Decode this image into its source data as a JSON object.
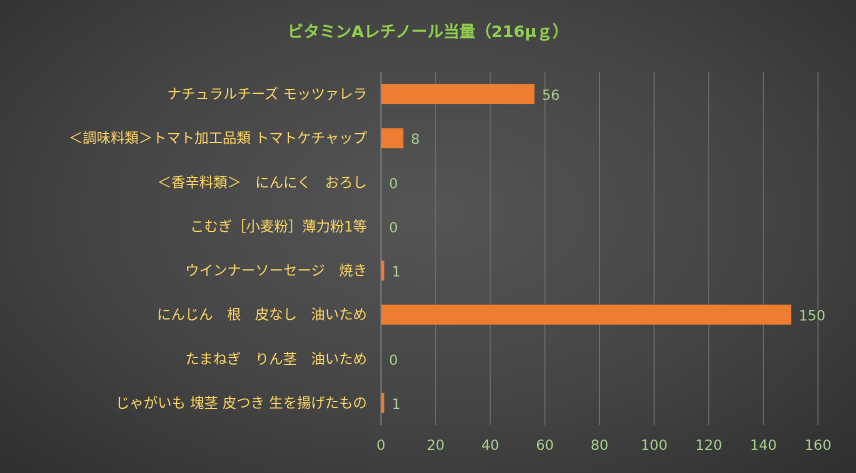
{
  "chart_data": {
    "type": "bar",
    "orientation": "horizontal",
    "title": "ビタミンAレチノール当量（216μｇ）",
    "categories": [
      "ナチュラルチーズ モッツァレラ",
      "＜調味料類＞トマト加工品類 トマトケチャップ",
      "＜香辛料類＞　にんにく　おろし",
      "こむぎ［小麦粉］薄力粉1等",
      "ウインナーソーセージ　焼き",
      "にんじん　根　皮なし　油いため",
      "たまねぎ　りん茎　油いため",
      "じゃがいも 塊茎 皮つき 生を揚げたもの"
    ],
    "values": [
      56,
      8,
      0,
      0,
      1,
      150,
      0,
      1
    ],
    "value_labels": [
      "56",
      "8",
      "0",
      "0",
      "1",
      "150",
      "0",
      "1"
    ],
    "xlim": [
      0,
      160
    ],
    "xticks": [
      0,
      20,
      40,
      60,
      80,
      100,
      120,
      140,
      160
    ],
    "xtick_labels": [
      "0",
      "20",
      "40",
      "60",
      "80",
      "100",
      "120",
      "140",
      "160"
    ],
    "grid": true,
    "colors": {
      "bar": "#ed7d31",
      "title": "#92d050",
      "category_text": "#ffd966",
      "value_text": "#a9d18e",
      "gridline": "#6e6e6e"
    }
  }
}
